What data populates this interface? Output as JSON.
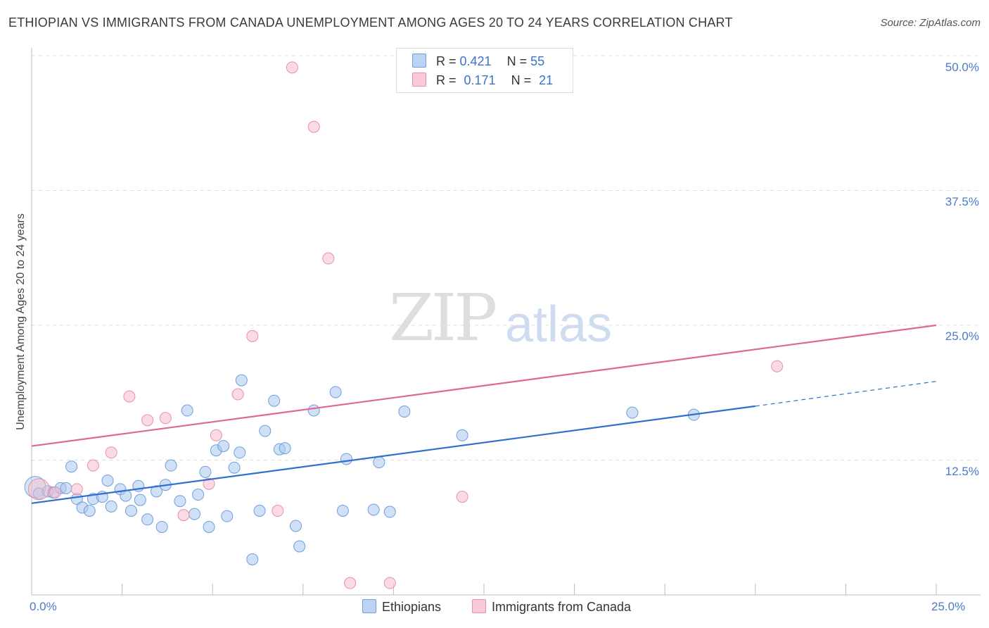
{
  "title": "ETHIOPIAN VS IMMIGRANTS FROM CANADA UNEMPLOYMENT AMONG AGES 20 TO 24 YEARS CORRELATION CHART",
  "source": "Source: ZipAtlas.com",
  "watermark": {
    "zip": "ZIP",
    "atlas": "atlas"
  },
  "legend": {
    "rows": [
      {
        "r_label": "R = ",
        "r_value": "0.421",
        "n_label": "N = ",
        "n_value": "55"
      },
      {
        "r_label": "R = ",
        "r_value": "0.171",
        "n_label": "N = ",
        "n_value": "21"
      }
    ],
    "bottom": [
      "Ethiopians",
      "Immigrants from Canada"
    ]
  },
  "colors": {
    "blue_fill": "#a9c6ee",
    "blue_stroke": "#6f9fdc",
    "blue_line": "#2f6fce",
    "pink_fill": "#f6bccd",
    "pink_stroke": "#ea8fab",
    "pink_line": "#e06890",
    "grid": "#dddddd",
    "axis_text": "#4a7cc7"
  },
  "chart_data": {
    "type": "scatter",
    "title": "ETHIOPIAN VS IMMIGRANTS FROM CANADA UNEMPLOYMENT AMONG AGES 20 TO 24 YEARS CORRELATION CHART",
    "xlabel": "",
    "ylabel": "Unemployment Among Ages 20 to 24 years",
    "xlim": [
      0,
      25
    ],
    "ylim": [
      0,
      50
    ],
    "x_tick_labels": [
      "0.0%",
      "25.0%"
    ],
    "y_ticks": [
      12.5,
      25.0,
      37.5,
      50.0
    ],
    "y_tick_labels": [
      "12.5%",
      "25.0%",
      "37.5%",
      "50.0%"
    ],
    "series": [
      {
        "name": "Ethiopians",
        "R": 0.421,
        "N": 55,
        "trend": {
          "x0": 0,
          "y0": 8.5,
          "x1": 20,
          "y1": 17.5,
          "dashed_to_x": 25,
          "dashed_to_y": 19.8
        },
        "points": [
          [
            0.1,
            10.0
          ],
          [
            0.2,
            9.4
          ],
          [
            0.45,
            9.6
          ],
          [
            0.6,
            9.5
          ],
          [
            0.8,
            9.9
          ],
          [
            0.95,
            9.9
          ],
          [
            1.1,
            11.9
          ],
          [
            1.25,
            8.9
          ],
          [
            1.4,
            8.1
          ],
          [
            1.6,
            7.8
          ],
          [
            1.7,
            8.9
          ],
          [
            1.95,
            9.1
          ],
          [
            2.1,
            10.6
          ],
          [
            2.2,
            8.2
          ],
          [
            2.45,
            9.8
          ],
          [
            2.6,
            9.2
          ],
          [
            2.75,
            7.8
          ],
          [
            2.95,
            10.1
          ],
          [
            3.0,
            8.8
          ],
          [
            3.2,
            7.0
          ],
          [
            3.45,
            9.6
          ],
          [
            3.6,
            6.3
          ],
          [
            3.7,
            10.2
          ],
          [
            3.85,
            12.0
          ],
          [
            4.1,
            8.7
          ],
          [
            4.3,
            17.1
          ],
          [
            4.5,
            7.5
          ],
          [
            4.6,
            9.3
          ],
          [
            4.8,
            11.4
          ],
          [
            4.9,
            6.3
          ],
          [
            5.1,
            13.4
          ],
          [
            5.3,
            13.8
          ],
          [
            5.4,
            7.3
          ],
          [
            5.6,
            11.8
          ],
          [
            5.75,
            13.2
          ],
          [
            5.8,
            19.9
          ],
          [
            6.1,
            3.3
          ],
          [
            6.3,
            7.8
          ],
          [
            6.45,
            15.2
          ],
          [
            6.7,
            18.0
          ],
          [
            6.85,
            13.5
          ],
          [
            7.0,
            13.6
          ],
          [
            7.3,
            6.4
          ],
          [
            7.4,
            4.5
          ],
          [
            7.8,
            17.1
          ],
          [
            8.4,
            18.8
          ],
          [
            8.6,
            7.8
          ],
          [
            8.7,
            12.6
          ],
          [
            9.45,
            7.9
          ],
          [
            9.6,
            12.3
          ],
          [
            9.9,
            7.7
          ],
          [
            10.3,
            17.0
          ],
          [
            11.9,
            14.8
          ],
          [
            16.6,
            16.9
          ],
          [
            18.3,
            16.7
          ]
        ]
      },
      {
        "name": "Immigrants from Canada",
        "R": 0.171,
        "N": 21,
        "trend": {
          "x0": 0,
          "y0": 13.8,
          "x1": 25,
          "y1": 25.0
        },
        "points": [
          [
            0.2,
            9.8
          ],
          [
            0.65,
            9.5
          ],
          [
            1.25,
            9.8
          ],
          [
            1.7,
            12.0
          ],
          [
            2.2,
            13.2
          ],
          [
            2.7,
            18.4
          ],
          [
            3.2,
            16.2
          ],
          [
            3.7,
            16.4
          ],
          [
            4.2,
            7.4
          ],
          [
            4.9,
            10.3
          ],
          [
            5.1,
            14.8
          ],
          [
            5.7,
            18.6
          ],
          [
            6.1,
            24.0
          ],
          [
            6.8,
            7.8
          ],
          [
            7.2,
            48.9
          ],
          [
            7.8,
            43.4
          ],
          [
            8.2,
            31.2
          ],
          [
            8.8,
            1.1
          ],
          [
            9.9,
            1.1
          ],
          [
            11.9,
            9.1
          ],
          [
            20.6,
            21.2
          ]
        ]
      }
    ]
  }
}
